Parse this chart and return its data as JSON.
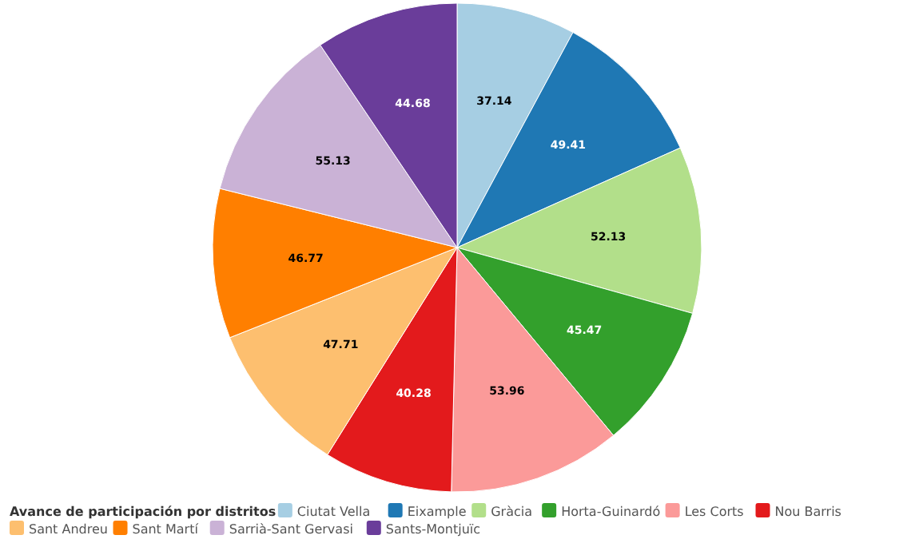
{
  "chart_data": {
    "type": "pie",
    "legend_title": "Avance de participación por distritos",
    "categories": [
      "Ciutat Vella",
      "Eixample",
      "Gràcia",
      "Horta-Guinardó",
      "Les Corts",
      "Nou Barris",
      "Sant Andreu",
      "Sant Martí",
      "Sarrià-Sant Gervasi",
      "Sants-Montjuïc"
    ],
    "values": [
      37.14,
      49.41,
      52.13,
      45.47,
      53.96,
      40.28,
      47.71,
      46.77,
      55.13,
      44.68
    ],
    "colors": [
      "#a6cee3",
      "#1f78b4",
      "#b2df8a",
      "#33a02c",
      "#fb9a99",
      "#e31a1c",
      "#fdbf6f",
      "#ff7f00",
      "#cab2d6",
      "#6a3d9a"
    ],
    "data_labels": true,
    "legend": "bottom"
  }
}
